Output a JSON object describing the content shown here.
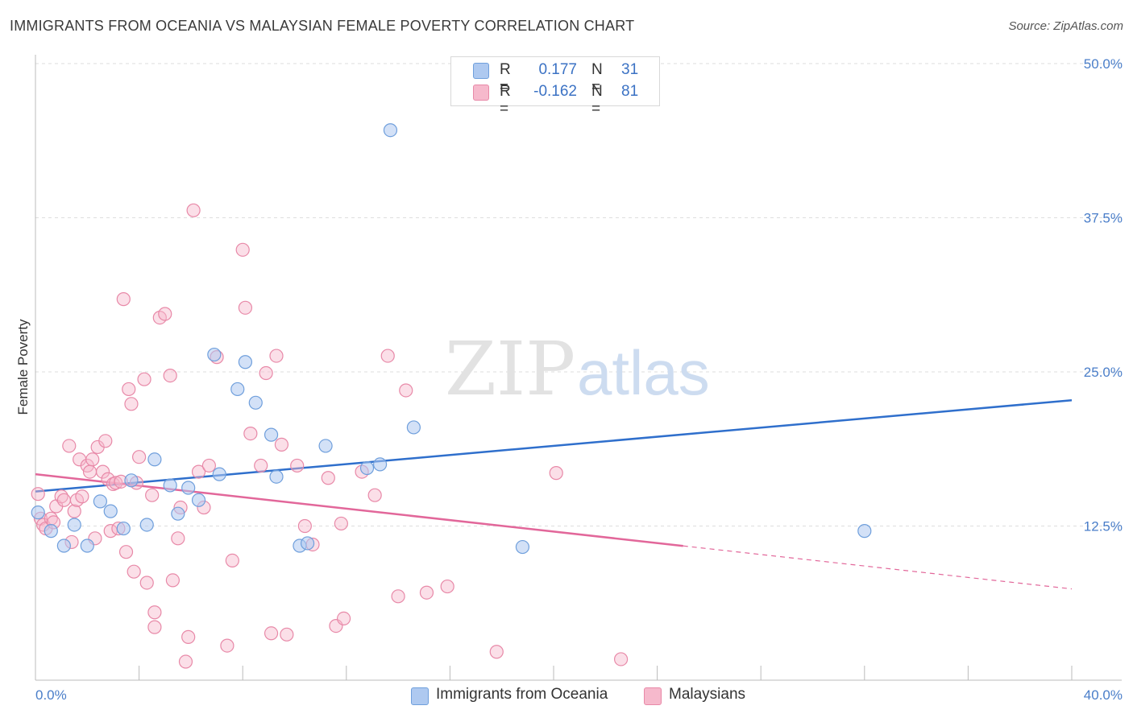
{
  "header": {
    "title": "IMMIGRANTS FROM OCEANIA VS MALAYSIAN FEMALE POVERTY CORRELATION CHART",
    "source": "Source: ZipAtlas.com"
  },
  "watermark": {
    "zip": "ZIP",
    "atlas": "atlas"
  },
  "legend": {
    "rows": [
      {
        "r_label": "R =",
        "r_value": "0.177",
        "n_label": "N =",
        "n_value": "31"
      },
      {
        "r_label": "R =",
        "r_value": "-0.162",
        "n_label": "N =",
        "n_value": "81"
      }
    ]
  },
  "bottom_legend": {
    "series1": "Immigrants from Oceania",
    "series2": "Malaysians"
  },
  "colors": {
    "blue_fill": "#aec9f0",
    "blue_stroke": "#6f9fdc",
    "blue_line": "#2f6fcc",
    "pink_fill": "#f6b9cc",
    "pink_stroke": "#e889a8",
    "pink_line": "#e2679a",
    "grid": "#dedede",
    "tick_text": "#4a7ec9"
  },
  "chart_data": {
    "type": "scatter",
    "title": "IMMIGRANTS FROM OCEANIA VS MALAYSIAN FEMALE POVERTY CORRELATION CHART",
    "xlabel": "",
    "ylabel": "Female Poverty",
    "xlim": [
      0,
      40
    ],
    "ylim": [
      0,
      50
    ],
    "x_tick_labels": [
      "0.0%",
      "40.0%"
    ],
    "y_ticks": [
      12.5,
      25.0,
      37.5,
      50.0
    ],
    "y_tick_labels": [
      "12.5%",
      "25.0%",
      "37.5%",
      "50.0%"
    ],
    "grid": true,
    "legend_position": "top-center",
    "series": [
      {
        "name": "Immigrants from Oceania",
        "color": "#aec9f0",
        "trend": {
          "x": [
            0,
            40
          ],
          "y": [
            15.3,
            22.7
          ],
          "dashed_from": null
        },
        "points": [
          [
            0.1,
            13.6
          ],
          [
            0.6,
            12.1
          ],
          [
            1.1,
            10.9
          ],
          [
            1.5,
            12.6
          ],
          [
            2.0,
            10.9
          ],
          [
            2.5,
            14.5
          ],
          [
            2.9,
            13.7
          ],
          [
            3.4,
            12.3
          ],
          [
            3.7,
            16.2
          ],
          [
            4.3,
            12.6
          ],
          [
            4.6,
            17.9
          ],
          [
            5.2,
            15.8
          ],
          [
            5.5,
            13.5
          ],
          [
            5.9,
            15.6
          ],
          [
            6.3,
            14.6
          ],
          [
            6.9,
            26.4
          ],
          [
            7.1,
            16.7
          ],
          [
            7.8,
            23.6
          ],
          [
            8.1,
            25.8
          ],
          [
            8.5,
            22.5
          ],
          [
            9.1,
            19.9
          ],
          [
            9.3,
            16.5
          ],
          [
            10.2,
            10.9
          ],
          [
            10.5,
            11.1
          ],
          [
            11.2,
            19.0
          ],
          [
            12.8,
            17.2
          ],
          [
            13.3,
            17.5
          ],
          [
            13.7,
            44.6
          ],
          [
            14.6,
            20.5
          ],
          [
            18.8,
            10.8
          ],
          [
            32.0,
            12.1
          ]
        ]
      },
      {
        "name": "Malaysians",
        "color": "#f6b9cc",
        "trend": {
          "x": [
            0,
            40
          ],
          "y": [
            16.7,
            7.4
          ],
          "dashed_from": 25
        },
        "points": [
          [
            0.1,
            15.1
          ],
          [
            0.2,
            13.1
          ],
          [
            0.3,
            12.6
          ],
          [
            0.4,
            12.3
          ],
          [
            0.6,
            13.1
          ],
          [
            0.7,
            12.8
          ],
          [
            0.8,
            14.1
          ],
          [
            1.0,
            14.9
          ],
          [
            1.1,
            14.6
          ],
          [
            1.3,
            19.0
          ],
          [
            1.4,
            11.2
          ],
          [
            1.5,
            13.7
          ],
          [
            1.6,
            14.6
          ],
          [
            1.7,
            17.9
          ],
          [
            1.8,
            14.9
          ],
          [
            2.0,
            17.4
          ],
          [
            2.1,
            16.9
          ],
          [
            2.2,
            17.9
          ],
          [
            2.3,
            11.5
          ],
          [
            2.4,
            18.9
          ],
          [
            2.6,
            16.9
          ],
          [
            2.7,
            19.4
          ],
          [
            2.8,
            16.3
          ],
          [
            2.9,
            12.1
          ],
          [
            3.0,
            15.9
          ],
          [
            3.1,
            16.0
          ],
          [
            3.2,
            12.3
          ],
          [
            3.3,
            16.1
          ],
          [
            3.4,
            30.9
          ],
          [
            3.5,
            10.4
          ],
          [
            3.6,
            23.6
          ],
          [
            3.7,
            22.4
          ],
          [
            3.8,
            8.8
          ],
          [
            3.9,
            16.0
          ],
          [
            4.0,
            18.1
          ],
          [
            4.2,
            24.4
          ],
          [
            4.3,
            7.9
          ],
          [
            4.5,
            15.0
          ],
          [
            4.6,
            5.5
          ],
          [
            4.6,
            4.3
          ],
          [
            4.8,
            29.4
          ],
          [
            5.0,
            29.7
          ],
          [
            5.2,
            24.7
          ],
          [
            5.3,
            8.1
          ],
          [
            5.5,
            11.5
          ],
          [
            5.6,
            14.0
          ],
          [
            5.8,
            1.5
          ],
          [
            5.9,
            3.5
          ],
          [
            6.1,
            38.1
          ],
          [
            6.3,
            16.9
          ],
          [
            6.5,
            14.0
          ],
          [
            6.7,
            17.4
          ],
          [
            7.0,
            26.2
          ],
          [
            7.4,
            2.8
          ],
          [
            7.6,
            9.7
          ],
          [
            8.0,
            34.9
          ],
          [
            8.1,
            30.2
          ],
          [
            8.3,
            20.0
          ],
          [
            8.7,
            17.4
          ],
          [
            8.9,
            24.9
          ],
          [
            9.1,
            3.8
          ],
          [
            9.3,
            26.3
          ],
          [
            9.5,
            19.1
          ],
          [
            9.7,
            3.7
          ],
          [
            10.1,
            17.4
          ],
          [
            10.4,
            12.5
          ],
          [
            10.7,
            11.0
          ],
          [
            11.3,
            16.4
          ],
          [
            11.6,
            4.4
          ],
          [
            11.8,
            12.7
          ],
          [
            11.9,
            5.0
          ],
          [
            12.6,
            16.9
          ],
          [
            13.1,
            15.0
          ],
          [
            13.6,
            26.3
          ],
          [
            14.0,
            6.8
          ],
          [
            14.3,
            23.5
          ],
          [
            15.1,
            7.1
          ],
          [
            15.9,
            7.6
          ],
          [
            17.8,
            2.3
          ],
          [
            20.1,
            16.8
          ],
          [
            22.6,
            1.7
          ]
        ]
      }
    ]
  }
}
